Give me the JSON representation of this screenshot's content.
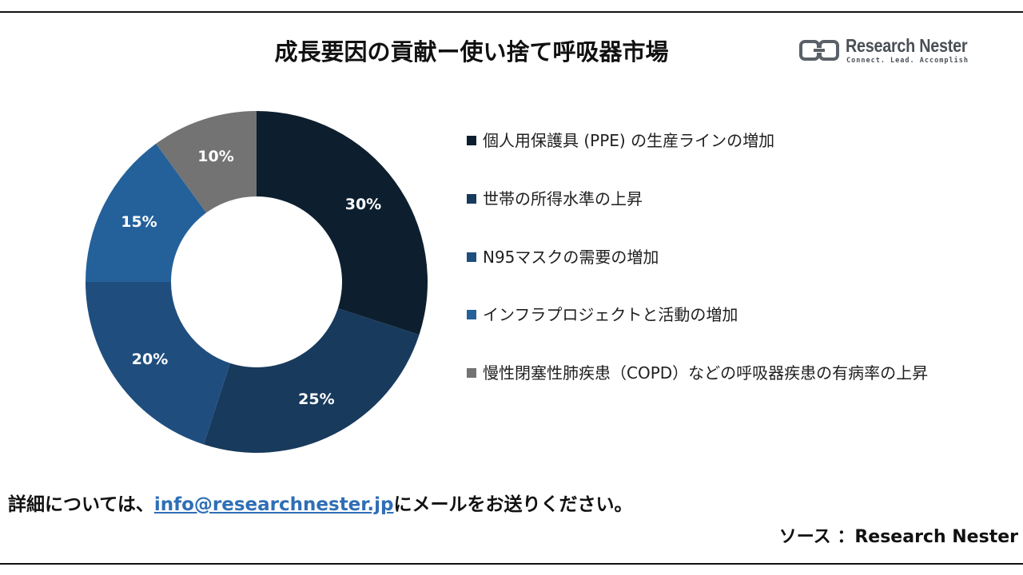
{
  "page": {
    "title": "成長要因の貢献ー使い捨て呼吸器市場",
    "logo": {
      "name": "Research Nester",
      "tagline": "Connect. Lead. Accomplish"
    },
    "footer": {
      "prefix": "詳細については、",
      "email": "info@researchnester.jp",
      "suffix": "にメールをお送りください。"
    },
    "source": "ソース ：Research Nester"
  },
  "chart_data": {
    "type": "pie",
    "variant": "donut",
    "start_angle_deg": 0,
    "direction": "clockwise",
    "slices": [
      {
        "label": "個人用保護具 (PPE) の生産ラインの増加",
        "value": 30,
        "display": "30%",
        "color": "#0d1f2f"
      },
      {
        "label": "世帯の所得水準の上昇",
        "value": 25,
        "display": "25%",
        "color": "#183a5c"
      },
      {
        "label": "N95マスクの需要の増加",
        "value": 20,
        "display": "20%",
        "color": "#1f4e7e"
      },
      {
        "label": "インフラプロジェクトと活動の増加",
        "value": 15,
        "display": "15%",
        "color": "#24619b"
      },
      {
        "label": "慢性閉塞性肺疾患（COPD）などの呼吸器疾患の有病率の上昇",
        "value": 10,
        "display": "10%",
        "color": "#737373"
      }
    ],
    "legend_position": "right"
  }
}
